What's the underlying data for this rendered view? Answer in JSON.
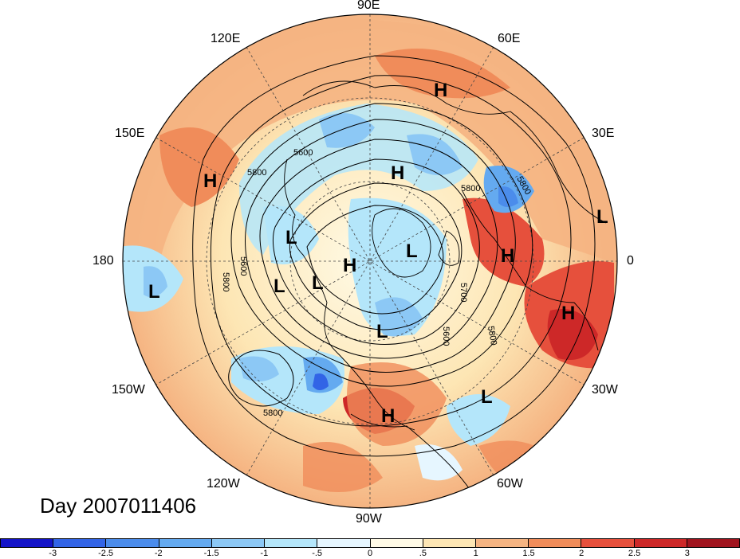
{
  "title": "Day 2007011406",
  "longitude_labels": {
    "lon_90e": "90E",
    "lon_60e": "60E",
    "lon_30e": "30E",
    "lon_0": "0",
    "lon_30w": "30W",
    "lon_60w": "60W",
    "lon_90w": "90W",
    "lon_120w": "120W",
    "lon_150w": "150W",
    "lon_180": "180",
    "lon_150e": "150E",
    "lon_120e": "120E"
  },
  "pressure_systems": [
    {
      "id": "h-russia",
      "label": "H"
    },
    {
      "id": "h-pacific",
      "label": "H"
    },
    {
      "id": "h-siberia",
      "label": "H"
    },
    {
      "id": "l-west-africa",
      "label": "L"
    },
    {
      "id": "h-west-europe",
      "label": "H"
    },
    {
      "id": "h-atlantic-africa",
      "label": "H"
    },
    {
      "id": "l-alaska",
      "label": "L"
    },
    {
      "id": "l-arctic-greenland",
      "label": "L"
    },
    {
      "id": "h-pole",
      "label": "H"
    },
    {
      "id": "l-bering",
      "label": "L"
    },
    {
      "id": "l-beaufort",
      "label": "L"
    },
    {
      "id": "l-hudson",
      "label": "L"
    },
    {
      "id": "l-pacific-west",
      "label": "L"
    },
    {
      "id": "l-atlantic-central",
      "label": "L"
    },
    {
      "id": "h-gulf",
      "label": "H"
    }
  ],
  "contour_labels": [
    "5600",
    "5800",
    "5800",
    "5600",
    "5800",
    "5700",
    "5600",
    "5800",
    "5800",
    "5800"
  ],
  "colorbar": {
    "ticks": [
      "-3",
      "-2.5",
      "-2",
      "-1.5",
      "-1",
      "-.5",
      "0",
      ".5",
      "1",
      "1.5",
      "2",
      "2.5",
      "3"
    ],
    "colors": [
      "#1414c8",
      "#3264e6",
      "#4b8ceb",
      "#64aaf0",
      "#8cc8f5",
      "#b4e6fa",
      "#e6f6ff",
      "#fffae6",
      "#fde6b4",
      "#f5b482",
      "#f08c5a",
      "#e6503c",
      "#cd2828",
      "#a0141e"
    ]
  }
}
